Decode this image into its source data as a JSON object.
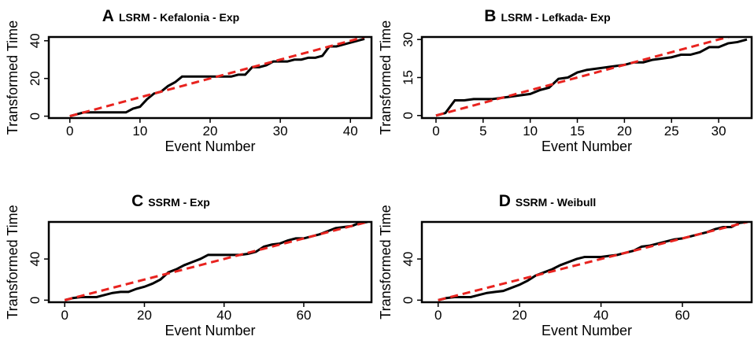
{
  "chart_data": [
    {
      "type": "line",
      "panel_label": "A",
      "title": "LSRM - Kefalonia - Exp",
      "xlabel": "Event Number",
      "ylabel": "Transformed Time",
      "x": [
        0,
        1,
        2,
        3,
        4,
        5,
        6,
        7,
        8,
        9,
        10,
        11,
        12,
        13,
        14,
        15,
        16,
        17,
        18,
        19,
        20,
        21,
        22,
        23,
        24,
        25,
        26,
        27,
        28,
        29,
        30,
        31,
        32,
        33,
        34,
        35,
        36,
        37,
        38,
        39,
        40,
        41,
        42
      ],
      "series": [
        {
          "color": "#000000",
          "dash": false,
          "values": [
            0,
            1,
            2,
            2,
            2,
            2,
            2,
            2,
            2,
            4,
            5,
            9,
            12,
            13,
            16,
            18,
            21,
            21,
            21,
            21,
            21,
            21,
            21,
            21,
            22,
            22,
            26,
            26,
            27,
            29,
            29,
            29,
            30,
            30,
            31,
            31,
            32,
            37,
            37,
            38,
            39,
            40,
            41
          ]
        },
        {
          "color": "#e8231f",
          "dash": true,
          "values": [
            0,
            1,
            2,
            3,
            4,
            5,
            6,
            7,
            8,
            9,
            10,
            11,
            12,
            13,
            14,
            15,
            16,
            17,
            18,
            19,
            20,
            21,
            22,
            23,
            24,
            25,
            26,
            27,
            28,
            29,
            30,
            31,
            32,
            33,
            34,
            35,
            36,
            37,
            38,
            39,
            40,
            41,
            42
          ]
        }
      ],
      "xlim": [
        -3,
        43
      ],
      "xticks": [
        0,
        10,
        20,
        30,
        40
      ],
      "ylim": [
        -1,
        42
      ],
      "yticks": [
        0,
        20,
        40
      ]
    },
    {
      "type": "line",
      "panel_label": "B",
      "title": "LSRM - Lefkada- Exp",
      "xlabel": "Event Number",
      "ylabel": "Transformed Time",
      "x": [
        0,
        1,
        2,
        3,
        4,
        5,
        6,
        7,
        8,
        9,
        10,
        11,
        12,
        13,
        14,
        15,
        16,
        17,
        18,
        19,
        20,
        21,
        22,
        23,
        24,
        25,
        26,
        27,
        28,
        29,
        30,
        31,
        32,
        33
      ],
      "series": [
        {
          "color": "#000000",
          "dash": false,
          "values": [
            0,
            1,
            6,
            6,
            6.5,
            6.5,
            6.5,
            7,
            7.5,
            8,
            8.5,
            10,
            11,
            14.5,
            15,
            17,
            18,
            18.5,
            19,
            19.5,
            20,
            21,
            21,
            22,
            22.5,
            23,
            24,
            24,
            25,
            27,
            27,
            28.5,
            29,
            30
          ]
        },
        {
          "color": "#e8231f",
          "dash": true,
          "values": [
            0,
            1,
            2,
            3,
            4,
            5,
            6,
            7,
            8,
            9,
            10,
            11,
            12,
            13,
            14,
            15,
            16,
            17,
            18,
            19,
            20,
            21,
            22,
            23,
            24,
            25,
            26,
            27,
            28,
            29,
            30,
            31,
            32,
            33
          ]
        }
      ],
      "xlim": [
        -1.5,
        33.5
      ],
      "xticks": [
        0,
        5,
        10,
        15,
        20,
        25,
        30
      ],
      "ylim": [
        -1,
        31
      ],
      "yticks": [
        0,
        15,
        30
      ]
    },
    {
      "type": "line",
      "panel_label": "C",
      "title": "SSRM - Exp",
      "xlabel": "Event Number",
      "ylabel": "Transformed Time",
      "x": [
        0,
        2,
        4,
        6,
        8,
        10,
        12,
        14,
        16,
        18,
        20,
        22,
        24,
        26,
        28,
        30,
        32,
        34,
        36,
        38,
        40,
        42,
        44,
        46,
        48,
        50,
        52,
        54,
        56,
        58,
        60,
        62,
        64,
        66,
        68,
        70,
        72,
        74,
        76
      ],
      "series": [
        {
          "color": "#000000",
          "dash": false,
          "values": [
            0,
            2,
            3,
            3,
            3,
            5,
            7,
            8,
            8,
            11,
            13,
            16,
            20,
            27,
            30,
            34,
            37,
            40,
            44,
            44,
            44,
            44,
            44,
            45,
            47,
            52,
            54,
            55,
            58,
            60,
            60,
            62,
            64,
            67,
            70,
            71,
            72,
            75,
            76
          ]
        },
        {
          "color": "#e8231f",
          "dash": true,
          "values": [
            0,
            2,
            4,
            6,
            8,
            10,
            12,
            14,
            16,
            18,
            20,
            22,
            24,
            26,
            28,
            30,
            32,
            34,
            36,
            38,
            40,
            42,
            44,
            46,
            48,
            50,
            52,
            54,
            56,
            58,
            60,
            62,
            64,
            66,
            68,
            70,
            72,
            74,
            76
          ]
        }
      ],
      "xlim": [
        -4,
        77
      ],
      "xticks": [
        0,
        20,
        40,
        60
      ],
      "ylim": [
        -2,
        76
      ],
      "yticks": [
        0,
        40
      ]
    },
    {
      "type": "line",
      "panel_label": "D",
      "title": "SSRM - Weibull",
      "xlabel": "Event Number",
      "ylabel": "Transformed Time",
      "x": [
        0,
        2,
        4,
        6,
        8,
        10,
        12,
        14,
        16,
        18,
        20,
        22,
        24,
        26,
        28,
        30,
        32,
        34,
        36,
        38,
        40,
        42,
        44,
        46,
        48,
        50,
        52,
        54,
        56,
        58,
        60,
        62,
        64,
        66,
        68,
        70,
        72,
        74,
        76
      ],
      "series": [
        {
          "color": "#000000",
          "dash": false,
          "values": [
            0,
            2,
            3,
            3,
            3,
            5,
            7,
            8,
            9,
            12,
            15,
            19,
            24,
            27,
            30,
            34,
            37,
            40,
            42,
            42,
            42,
            43,
            44,
            46,
            48,
            52,
            53,
            55,
            57,
            59,
            60,
            62,
            64,
            66,
            69,
            71,
            71,
            75,
            76
          ]
        },
        {
          "color": "#e8231f",
          "dash": true,
          "values": [
            0,
            2,
            4,
            6,
            8,
            10,
            12,
            14,
            16,
            18,
            20,
            22,
            24,
            26,
            28,
            30,
            32,
            34,
            36,
            38,
            40,
            42,
            44,
            46,
            48,
            50,
            52,
            54,
            56,
            58,
            60,
            62,
            64,
            66,
            68,
            70,
            72,
            74,
            76
          ]
        }
      ],
      "xlim": [
        -4,
        77
      ],
      "xticks": [
        0,
        20,
        40,
        60
      ],
      "ylim": [
        -2,
        76
      ],
      "yticks": [
        0,
        40
      ]
    }
  ]
}
